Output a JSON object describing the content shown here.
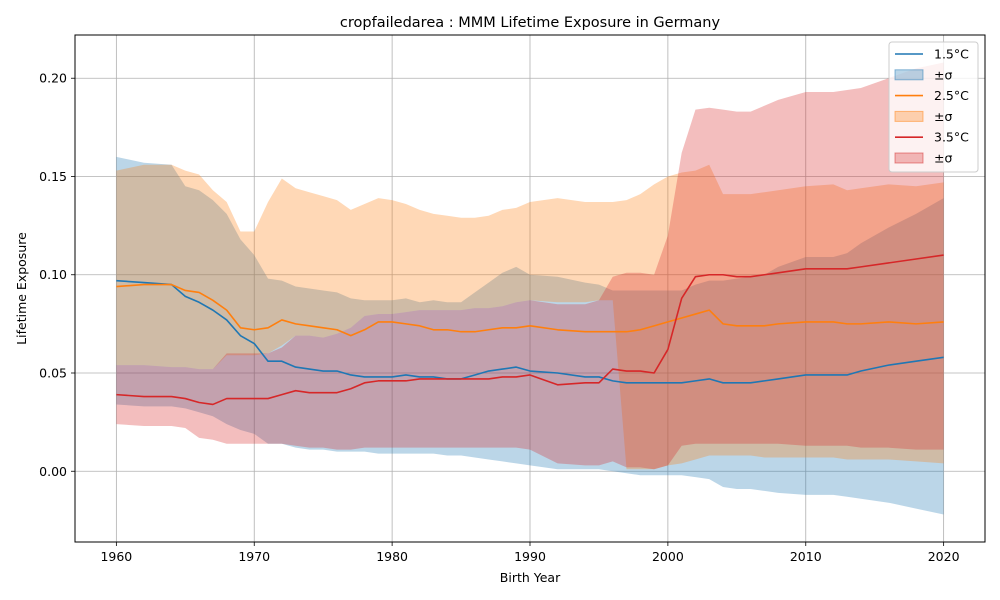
{
  "chart_data": {
    "type": "line",
    "title": "cropfailedarea : MMM Lifetime Exposure in Germany",
    "xlabel": "Birth Year",
    "ylabel": "Lifetime Exposure",
    "xlim": [
      1957,
      2023
    ],
    "ylim": [
      -0.036,
      0.222
    ],
    "xticks": [
      1960,
      1970,
      1980,
      1990,
      2000,
      2010,
      2020
    ],
    "xtick_labels": [
      "1960",
      "1970",
      "1980",
      "1990",
      "2000",
      "2010",
      "2020"
    ],
    "yticks": [
      0.0,
      0.05,
      0.1,
      0.15,
      0.2
    ],
    "ytick_labels": [
      "0.00",
      "0.05",
      "0.10",
      "0.15",
      "0.20"
    ],
    "grid": true,
    "legend_position": "top-right",
    "legend": [
      "1.5°C",
      "±σ",
      "2.5°C",
      "±σ",
      "3.5°C",
      "±σ"
    ],
    "x": [
      1960,
      1962,
      1964,
      1965,
      1966,
      1967,
      1968,
      1969,
      1970,
      1971,
      1972,
      1973,
      1974,
      1975,
      1976,
      1977,
      1978,
      1979,
      1980,
      1981,
      1982,
      1983,
      1984,
      1985,
      1986,
      1987,
      1988,
      1989,
      1990,
      1992,
      1994,
      1995,
      1996,
      1997,
      1998,
      1999,
      2000,
      2001,
      2002,
      2003,
      2004,
      2005,
      2006,
      2007,
      2008,
      2010,
      2012,
      2013,
      2014,
      2016,
      2018,
      2020
    ],
    "series": [
      {
        "name": "1.5°C",
        "color": "#1f77b4",
        "band_color": "#1f77b4",
        "mean": [
          0.097,
          0.096,
          0.095,
          0.089,
          0.086,
          0.082,
          0.077,
          0.069,
          0.065,
          0.056,
          0.056,
          0.053,
          0.052,
          0.051,
          0.051,
          0.049,
          0.048,
          0.048,
          0.048,
          0.049,
          0.048,
          0.048,
          0.047,
          0.047,
          0.049,
          0.051,
          0.052,
          0.053,
          0.051,
          0.05,
          0.048,
          0.048,
          0.046,
          0.045,
          0.045,
          0.045,
          0.045,
          0.045,
          0.046,
          0.047,
          0.045,
          0.045,
          0.045,
          0.046,
          0.047,
          0.049,
          0.049,
          0.049,
          0.051,
          0.054,
          0.056,
          0.058
        ],
        "upper": [
          0.16,
          0.157,
          0.156,
          0.145,
          0.143,
          0.138,
          0.131,
          0.118,
          0.11,
          0.098,
          0.097,
          0.094,
          0.093,
          0.092,
          0.091,
          0.088,
          0.087,
          0.087,
          0.087,
          0.088,
          0.086,
          0.087,
          0.086,
          0.086,
          0.091,
          0.096,
          0.101,
          0.104,
          0.1,
          0.099,
          0.096,
          0.095,
          0.092,
          0.092,
          0.092,
          0.092,
          0.092,
          0.092,
          0.095,
          0.097,
          0.097,
          0.098,
          0.099,
          0.1,
          0.104,
          0.109,
          0.109,
          0.111,
          0.116,
          0.124,
          0.131,
          0.139
        ],
        "lower": [
          0.034,
          0.033,
          0.033,
          0.032,
          0.03,
          0.028,
          0.024,
          0.021,
          0.019,
          0.014,
          0.014,
          0.012,
          0.011,
          0.011,
          0.01,
          0.01,
          0.01,
          0.009,
          0.009,
          0.009,
          0.009,
          0.009,
          0.008,
          0.008,
          0.007,
          0.006,
          0.005,
          0.004,
          0.003,
          0.001,
          0.001,
          0.001,
          0.0,
          -0.001,
          -0.002,
          -0.002,
          -0.002,
          -0.002,
          -0.003,
          -0.004,
          -0.008,
          -0.009,
          -0.009,
          -0.01,
          -0.011,
          -0.012,
          -0.012,
          -0.013,
          -0.014,
          -0.016,
          -0.019,
          -0.022
        ]
      },
      {
        "name": "2.5°C",
        "color": "#ff7f0e",
        "band_color": "#ff7f0e",
        "mean": [
          0.094,
          0.095,
          0.095,
          0.092,
          0.091,
          0.087,
          0.082,
          0.073,
          0.072,
          0.073,
          0.077,
          0.075,
          0.074,
          0.073,
          0.072,
          0.069,
          0.072,
          0.076,
          0.076,
          0.075,
          0.074,
          0.072,
          0.072,
          0.071,
          0.071,
          0.072,
          0.073,
          0.073,
          0.074,
          0.072,
          0.071,
          0.071,
          0.071,
          0.071,
          0.072,
          0.074,
          0.076,
          0.078,
          0.08,
          0.082,
          0.075,
          0.074,
          0.074,
          0.074,
          0.075,
          0.076,
          0.076,
          0.075,
          0.075,
          0.076,
          0.075,
          0.076
        ],
        "upper": [
          0.153,
          0.156,
          0.156,
          0.153,
          0.151,
          0.143,
          0.137,
          0.122,
          0.122,
          0.137,
          0.149,
          0.144,
          0.142,
          0.14,
          0.138,
          0.133,
          0.136,
          0.139,
          0.138,
          0.136,
          0.133,
          0.131,
          0.13,
          0.129,
          0.129,
          0.13,
          0.133,
          0.134,
          0.137,
          0.139,
          0.137,
          0.137,
          0.137,
          0.138,
          0.141,
          0.146,
          0.15,
          0.152,
          0.153,
          0.156,
          0.141,
          0.141,
          0.141,
          0.142,
          0.143,
          0.145,
          0.146,
          0.143,
          0.144,
          0.146,
          0.145,
          0.147
        ],
        "lower": [
          0.054,
          0.054,
          0.053,
          0.053,
          0.052,
          0.052,
          0.059,
          0.059,
          0.059,
          0.06,
          0.064,
          0.069,
          0.069,
          0.068,
          0.07,
          0.073,
          0.079,
          0.08,
          0.08,
          0.081,
          0.082,
          0.082,
          0.082,
          0.082,
          0.083,
          0.083,
          0.084,
          0.086,
          0.087,
          0.086,
          0.086,
          0.087,
          0.087,
          0.001,
          0.001,
          0.001,
          0.003,
          0.004,
          0.006,
          0.008,
          0.008,
          0.008,
          0.008,
          0.007,
          0.007,
          0.007,
          0.007,
          0.006,
          0.006,
          0.006,
          0.005,
          0.004
        ]
      },
      {
        "name": "3.5°C",
        "color": "#d62728",
        "band_color": "#d62728",
        "mean": [
          0.039,
          0.038,
          0.038,
          0.037,
          0.035,
          0.034,
          0.037,
          0.037,
          0.037,
          0.037,
          0.039,
          0.041,
          0.04,
          0.04,
          0.04,
          0.042,
          0.045,
          0.046,
          0.046,
          0.046,
          0.047,
          0.047,
          0.047,
          0.047,
          0.047,
          0.047,
          0.048,
          0.048,
          0.049,
          0.044,
          0.045,
          0.045,
          0.052,
          0.051,
          0.051,
          0.05,
          0.062,
          0.088,
          0.099,
          0.1,
          0.1,
          0.099,
          0.099,
          0.1,
          0.101,
          0.103,
          0.103,
          0.103,
          0.104,
          0.106,
          0.108,
          0.11
        ],
        "upper": [
          0.054,
          0.054,
          0.053,
          0.053,
          0.052,
          0.052,
          0.06,
          0.06,
          0.06,
          0.06,
          0.063,
          0.069,
          0.069,
          0.068,
          0.07,
          0.073,
          0.079,
          0.08,
          0.08,
          0.081,
          0.082,
          0.082,
          0.082,
          0.082,
          0.083,
          0.083,
          0.084,
          0.086,
          0.087,
          0.085,
          0.085,
          0.087,
          0.099,
          0.101,
          0.101,
          0.1,
          0.12,
          0.162,
          0.184,
          0.185,
          0.184,
          0.183,
          0.183,
          0.186,
          0.189,
          0.193,
          0.193,
          0.194,
          0.195,
          0.2,
          0.205,
          0.208
        ],
        "lower": [
          0.024,
          0.023,
          0.023,
          0.022,
          0.017,
          0.016,
          0.014,
          0.014,
          0.014,
          0.014,
          0.014,
          0.013,
          0.012,
          0.012,
          0.011,
          0.011,
          0.012,
          0.012,
          0.012,
          0.012,
          0.012,
          0.012,
          0.012,
          0.012,
          0.012,
          0.012,
          0.012,
          0.012,
          0.011,
          0.004,
          0.003,
          0.003,
          0.005,
          0.002,
          0.002,
          0.001,
          0.003,
          0.013,
          0.014,
          0.014,
          0.014,
          0.014,
          0.014,
          0.014,
          0.014,
          0.013,
          0.013,
          0.013,
          0.012,
          0.012,
          0.011,
          0.011
        ]
      }
    ]
  }
}
